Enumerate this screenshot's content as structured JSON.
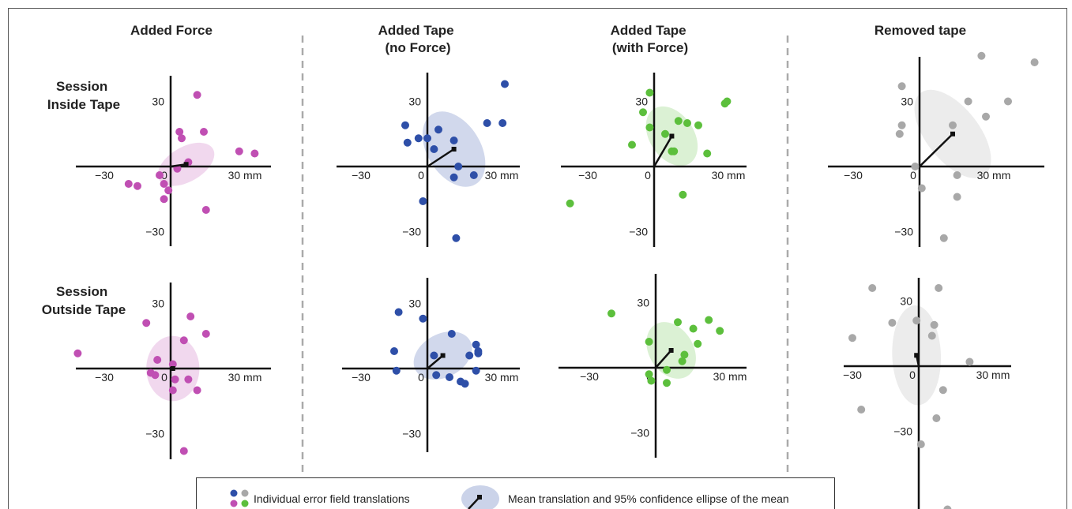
{
  "columns": [
    "Added Force",
    "Added Tape\n(no Force)",
    "Added Tape\n(with Force)",
    "Removed tape"
  ],
  "rows": [
    "Session\nInside Tape",
    "Session\nOutside Tape"
  ],
  "tick_labels": {
    "neg": "−30",
    "zero": "0",
    "pos": "30 mm",
    "y_pos": "30",
    "y_neg": "−30"
  },
  "legend": {
    "points_label": "Individual error field translations",
    "mean_label": "Mean translation and 95% confidence ellipse of the mean"
  },
  "colors": {
    "force": "#c04fb3",
    "tape_no_force": "#2e4fa8",
    "tape_with_force": "#5cbf3c",
    "removed": "#a8a8a8",
    "axis": "#111111",
    "divider": "#aaaaaa"
  },
  "chart_data": [
    {
      "type": "scatter",
      "id": "force_inside",
      "row": 0,
      "col": 0,
      "color": "force",
      "xlim": [
        -45,
        45
      ],
      "ylim": [
        -38,
        45
      ],
      "points": [
        [
          12,
          33
        ],
        [
          4,
          16
        ],
        [
          5,
          13
        ],
        [
          15,
          16
        ],
        [
          31,
          7
        ],
        [
          38,
          6
        ],
        [
          8,
          2
        ],
        [
          3,
          -1
        ],
        [
          -5,
          -4
        ],
        [
          -3,
          -8
        ],
        [
          -1,
          -11
        ],
        [
          -3,
          -15
        ],
        [
          -19,
          -8
        ],
        [
          -15,
          -9
        ],
        [
          16,
          -20
        ]
      ],
      "mean": [
        7,
        1
      ],
      "ellipse": {
        "rx": 14,
        "ry": 8,
        "angle": 30
      }
    },
    {
      "type": "scatter",
      "id": "tape_inside",
      "row": 0,
      "col": 1,
      "color": "tape_no_force",
      "xlim": [
        -45,
        45
      ],
      "ylim": [
        -38,
        45
      ],
      "points": [
        [
          35,
          38
        ],
        [
          -10,
          19
        ],
        [
          5,
          17
        ],
        [
          -9,
          11
        ],
        [
          -4,
          13
        ],
        [
          0,
          13
        ],
        [
          3,
          8
        ],
        [
          12,
          12
        ],
        [
          27,
          20
        ],
        [
          34,
          20
        ],
        [
          -2,
          -16
        ],
        [
          12,
          -5
        ],
        [
          21,
          -4
        ],
        [
          14,
          0
        ],
        [
          13,
          -33
        ]
      ],
      "mean": [
        12,
        8
      ],
      "ellipse": {
        "rx": 12,
        "ry": 19,
        "angle": 32
      }
    },
    {
      "type": "scatter",
      "id": "tape_force_inside",
      "row": 0,
      "col": 2,
      "color": "tape_with_force",
      "xlim": [
        -45,
        45
      ],
      "ylim": [
        -38,
        45
      ],
      "points": [
        [
          -2,
          34
        ],
        [
          -5,
          25
        ],
        [
          32,
          29
        ],
        [
          33,
          30
        ],
        [
          11,
          21
        ],
        [
          15,
          20
        ],
        [
          20,
          19
        ],
        [
          -2,
          18
        ],
        [
          5,
          15
        ],
        [
          -10,
          10
        ],
        [
          8,
          7
        ],
        [
          9,
          7
        ],
        [
          24,
          6
        ],
        [
          13,
          -13
        ],
        [
          -38,
          -17
        ]
      ],
      "mean": [
        8,
        14
      ],
      "ellipse": {
        "rx": 10,
        "ry": 15,
        "angle": 34
      }
    },
    {
      "type": "scatter",
      "id": "removed_inside",
      "row": 0,
      "col": 3,
      "color": "removed",
      "xlim": [
        -45,
        58
      ],
      "ylim": [
        -38,
        52
      ],
      "points": [
        [
          28,
          51
        ],
        [
          52,
          48
        ],
        [
          -8,
          37
        ],
        [
          22,
          30
        ],
        [
          40,
          30
        ],
        [
          -8,
          19
        ],
        [
          -9,
          15
        ],
        [
          15,
          19
        ],
        [
          30,
          23
        ],
        [
          -2,
          0
        ],
        [
          17,
          -4
        ],
        [
          1,
          -10
        ],
        [
          17,
          -14
        ],
        [
          11,
          -33
        ]
      ],
      "mean": [
        15,
        15
      ],
      "ellipse": {
        "rx": 12,
        "ry": 24,
        "angle": 38
      }
    },
    {
      "type": "scatter",
      "id": "force_outside",
      "row": 1,
      "col": 0,
      "color": "force",
      "xlim": [
        -45,
        45
      ],
      "ylim": [
        -45,
        38
      ],
      "points": [
        [
          -42,
          7
        ],
        [
          -11,
          21
        ],
        [
          9,
          24
        ],
        [
          16,
          16
        ],
        [
          6,
          13
        ],
        [
          -6,
          4
        ],
        [
          1,
          2
        ],
        [
          -9,
          -2
        ],
        [
          -7,
          -3
        ],
        [
          2,
          -5
        ],
        [
          8,
          -5
        ],
        [
          12,
          -10
        ],
        [
          1,
          -10
        ],
        [
          6,
          -38
        ]
      ],
      "mean": [
        1,
        0
      ],
      "ellipse": {
        "rx": 12,
        "ry": 15,
        "angle": 0
      }
    },
    {
      "type": "scatter",
      "id": "tape_outside",
      "row": 1,
      "col": 1,
      "color": "tape_no_force",
      "xlim": [
        -45,
        45
      ],
      "ylim": [
        -40,
        43
      ],
      "points": [
        [
          -13,
          26
        ],
        [
          -2,
          23
        ],
        [
          11,
          16
        ],
        [
          22,
          11
        ],
        [
          23,
          8
        ],
        [
          -15,
          8
        ],
        [
          23,
          7
        ],
        [
          3,
          6
        ],
        [
          19,
          6
        ],
        [
          -14,
          -1
        ],
        [
          4,
          -3
        ],
        [
          10,
          -4
        ],
        [
          22,
          -1
        ],
        [
          15,
          -6
        ],
        [
          17,
          -7
        ]
      ],
      "mean": [
        7,
        6
      ],
      "ellipse": {
        "rx": 14,
        "ry": 10,
        "angle": 28
      }
    },
    {
      "type": "scatter",
      "id": "tape_force_outside",
      "row": 1,
      "col": 2,
      "color": "tape_with_force",
      "xlim": [
        -45,
        45
      ],
      "ylim": [
        -42,
        43
      ],
      "points": [
        [
          -20,
          25
        ],
        [
          10,
          21
        ],
        [
          24,
          22
        ],
        [
          17,
          18
        ],
        [
          29,
          17
        ],
        [
          -3,
          12
        ],
        [
          19,
          11
        ],
        [
          13,
          6
        ],
        [
          12,
          3
        ],
        [
          -3,
          -3
        ],
        [
          5,
          -1
        ],
        [
          -2,
          -6
        ],
        [
          5,
          -7
        ]
      ],
      "mean": [
        7,
        8
      ],
      "ellipse": {
        "rx": 10,
        "ry": 14,
        "angle": 32
      }
    },
    {
      "type": "scatter",
      "id": "removed_outside",
      "row": 1,
      "col": 3,
      "color": "removed",
      "xlim": [
        -38,
        45
      ],
      "ylim": [
        -65,
        40
      ],
      "points": [
        [
          -21,
          36
        ],
        [
          9,
          36
        ],
        [
          -30,
          13
        ],
        [
          -12,
          20
        ],
        [
          -1,
          21
        ],
        [
          7,
          19
        ],
        [
          6,
          14
        ],
        [
          23,
          2
        ],
        [
          11,
          -11
        ],
        [
          -26,
          -20
        ],
        [
          8,
          -24
        ],
        [
          1,
          -36
        ],
        [
          13,
          -66
        ]
      ],
      "mean": [
        -1,
        5
      ],
      "ellipse": {
        "rx": 11,
        "ry": 23,
        "angle": 2
      }
    }
  ]
}
